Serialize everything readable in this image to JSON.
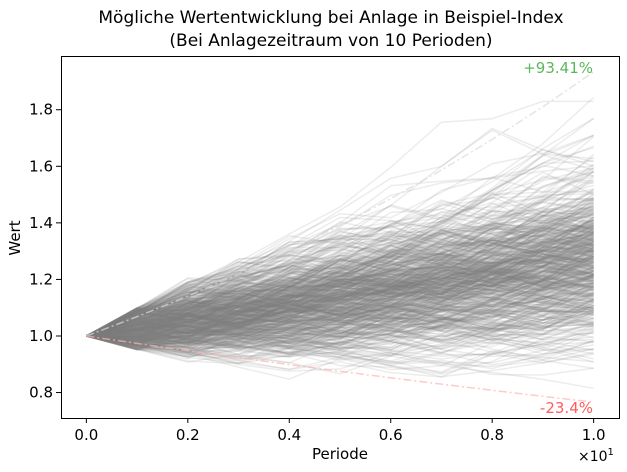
{
  "chart_data": {
    "type": "line",
    "title_line1": "Mögliche Wertentwicklung bei Anlage in Beispiel-Index",
    "title_line2": "(Bei Anlagezeitraum von 10 Perioden)",
    "xlabel": "Periode",
    "ylabel": "Wert",
    "x_offset_label": "×10",
    "x_offset_exp": "1",
    "xlim": [
      -0.5,
      10.5
    ],
    "ylim": [
      0.71,
      1.99
    ],
    "x_ticks": [
      0,
      2,
      4,
      6,
      8,
      10
    ],
    "x_tick_labels": [
      "0.0",
      "0.2",
      "0.4",
      "0.6",
      "0.8",
      "1.0"
    ],
    "y_ticks": [
      0.8,
      1.0,
      1.2,
      1.4,
      1.6,
      1.8
    ],
    "y_tick_labels": [
      "0.8",
      "1.0",
      "1.2",
      "1.4",
      "1.6",
      "1.8"
    ],
    "x": [
      0,
      1,
      2,
      3,
      4,
      5,
      6,
      7,
      8,
      9,
      10
    ],
    "series_count": 600,
    "start_value": 1.0,
    "per_period_change": [
      -0.05,
      0.1
    ],
    "best_final": 1.9341,
    "worst_final": 0.766,
    "annotation_best": "+93.41%",
    "annotation_worst": "-23.4%",
    "colors": {
      "paths": "#808080",
      "best": "#d9d9d9",
      "worst": "#ffb3b3",
      "best_label": "#5cb85c",
      "worst_label": "#ff5c5c"
    }
  }
}
